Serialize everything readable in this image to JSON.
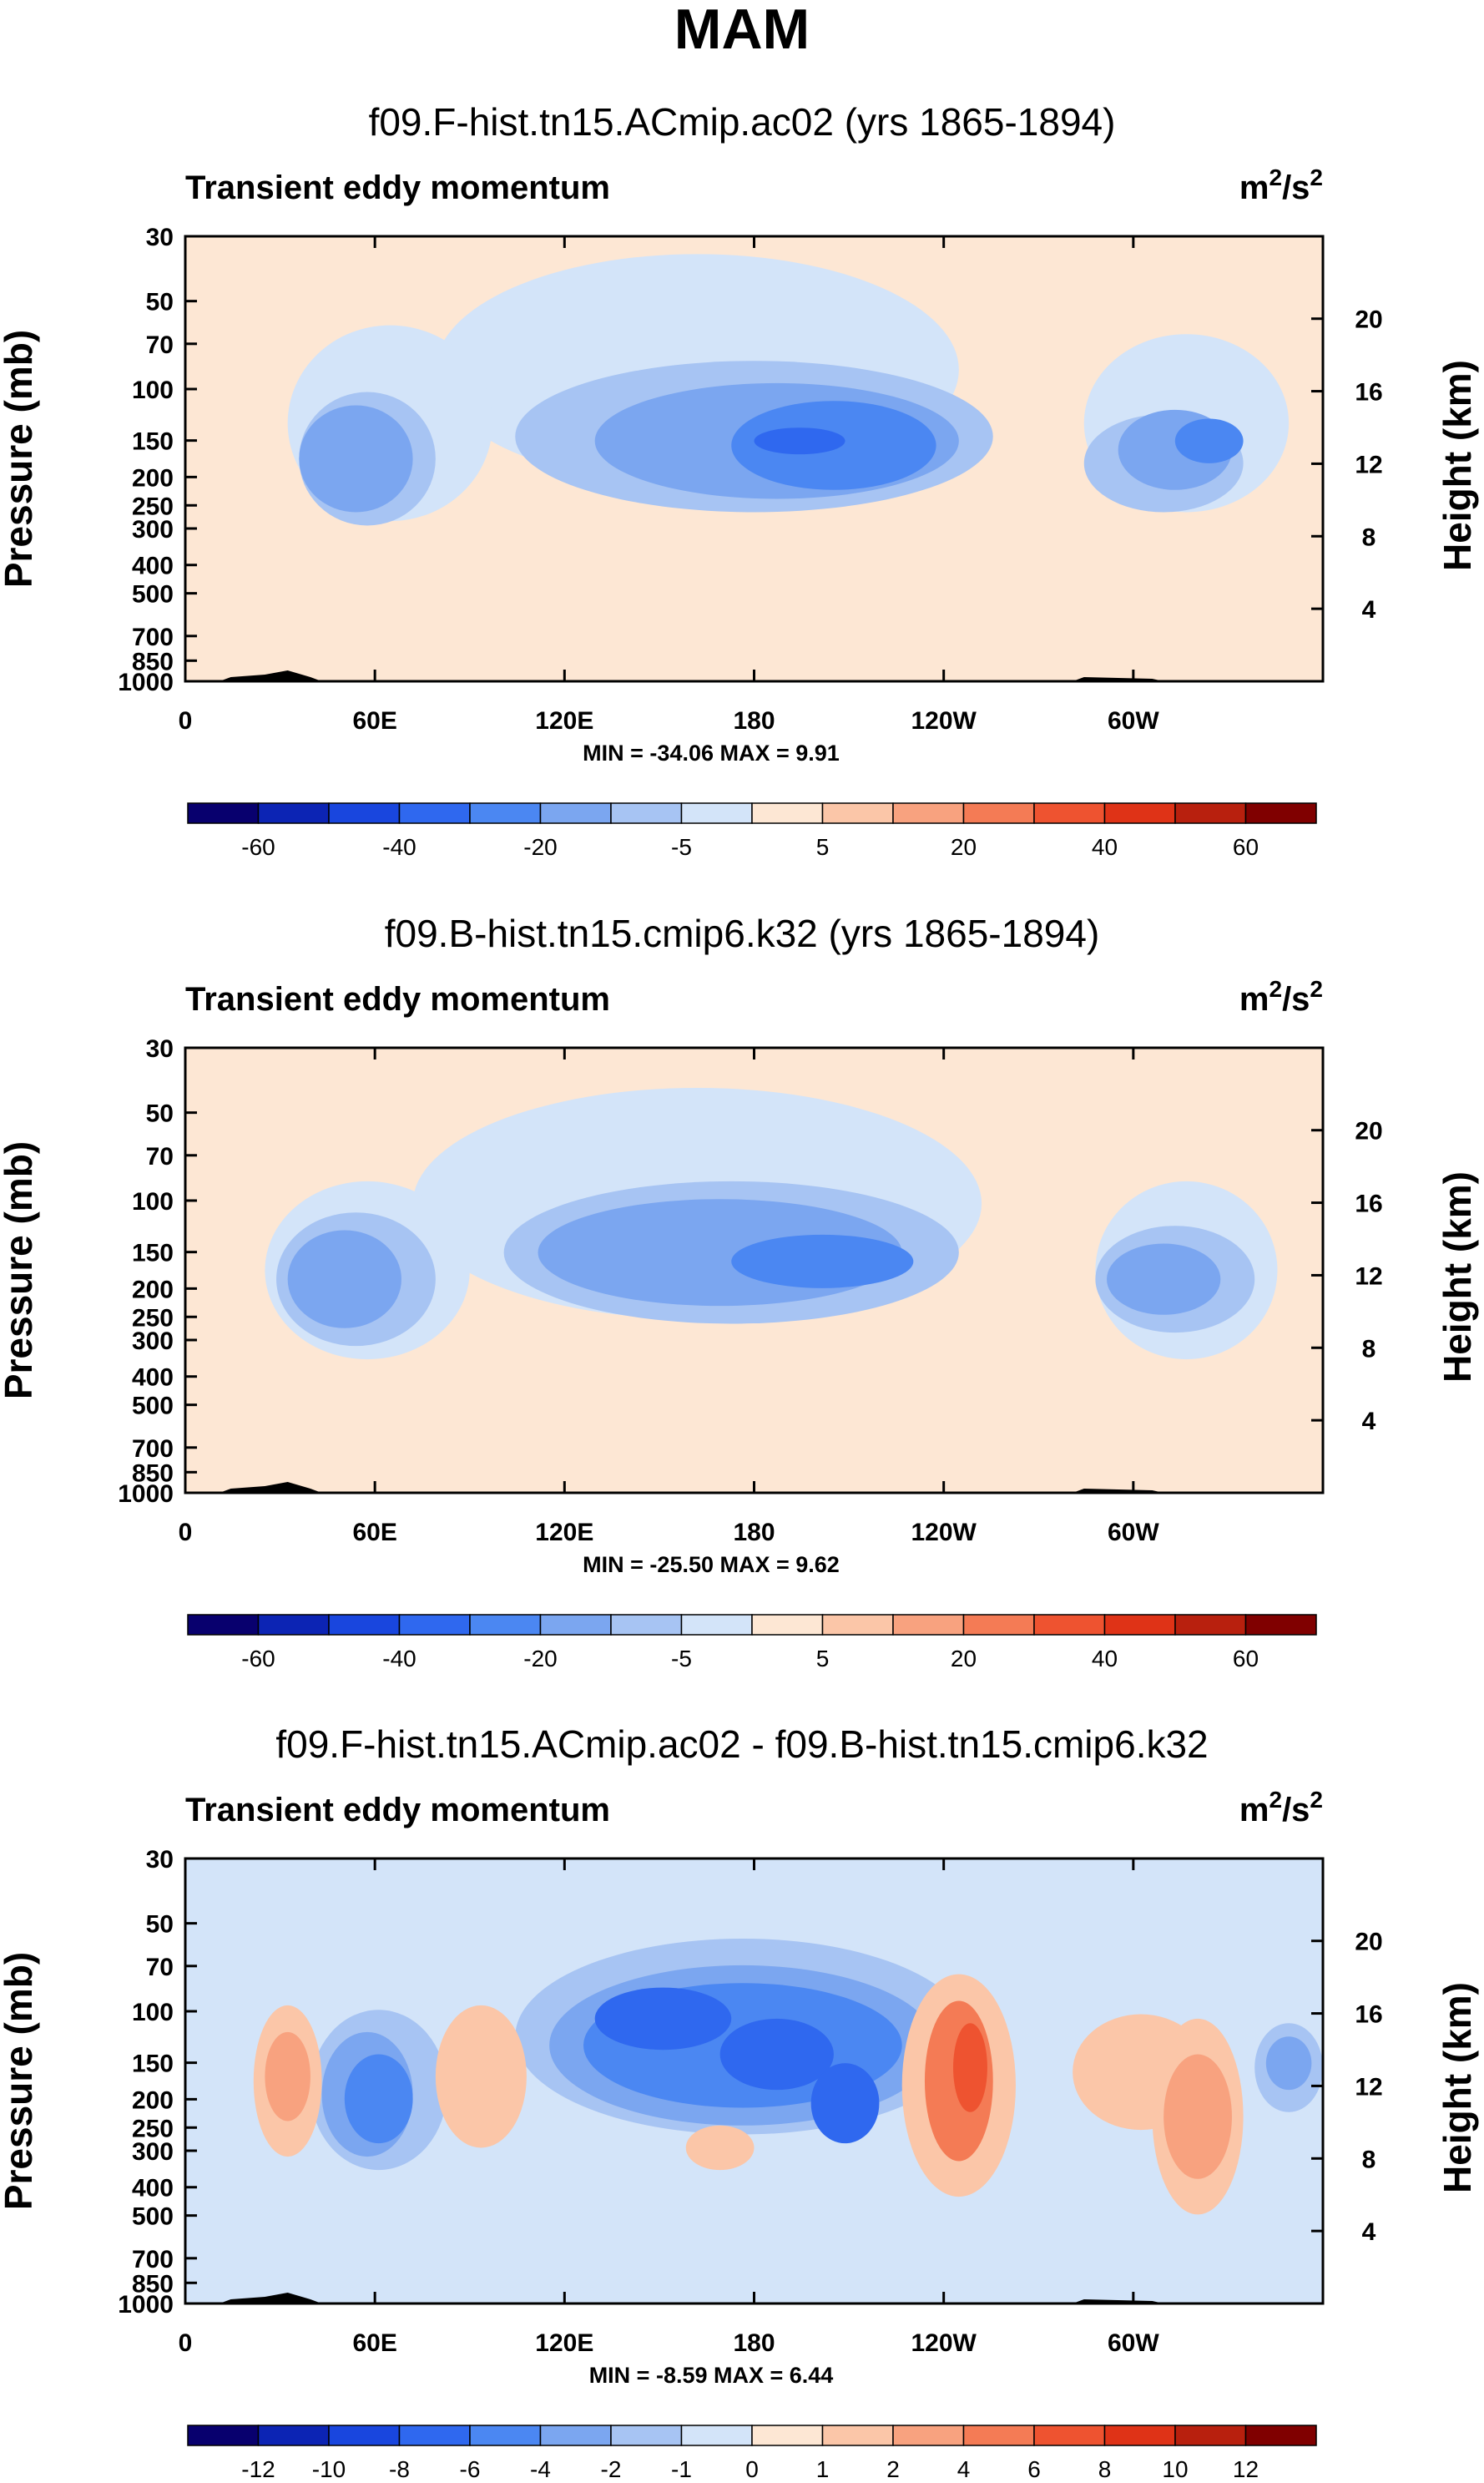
{
  "page_title": "MAM",
  "common": {
    "subtitle": "Transient eddy momentum",
    "units_base": "m",
    "units_exp_1": "2",
    "units_mid": "/s",
    "units_exp_2": "2",
    "ylabel_left": "Pressure (mb)",
    "ylabel_right": "Height (km)"
  },
  "chart_data": [
    {
      "type": "heatmap",
      "title": "f09.F-hist.tn15.ACmip.ac02 (yrs 1865-1894)",
      "subtitle": "Transient eddy momentum",
      "units": "m2/s2",
      "x_ticks": [
        "0",
        "60E",
        "120E",
        "180",
        "120W",
        "60W"
      ],
      "y_ticks_pressure": [
        "30",
        "50",
        "70",
        "100",
        "150",
        "200",
        "250",
        "300",
        "400",
        "500",
        "700",
        "850",
        "1000"
      ],
      "y_ticks_height": [
        "20",
        "16",
        "12",
        "8",
        "4"
      ],
      "xlabel": "MIN = -34.06   MAX =   9.91",
      "stats": {
        "min": -34.06,
        "max": 9.91
      },
      "colorbar_labels": [
        "-60",
        "-40",
        "-20",
        "-5",
        "5",
        "20",
        "40",
        "60"
      ],
      "colorbar_colors": [
        "#08006e",
        "#0c24b4",
        "#1946de",
        "#2f68ef",
        "#4b87f2",
        "#7ba6f0",
        "#a7c4f3",
        "#d3e4f9",
        "#fde7d4",
        "#fbc6a8",
        "#f8a27f",
        "#f47b55",
        "#ee5330",
        "#df3317",
        "#b8200e",
        "#800000"
      ]
    },
    {
      "type": "heatmap",
      "title": "f09.B-hist.tn15.cmip6.k32 (yrs 1865-1894)",
      "subtitle": "Transient eddy momentum",
      "units": "m2/s2",
      "x_ticks": [
        "0",
        "60E",
        "120E",
        "180",
        "120W",
        "60W"
      ],
      "y_ticks_pressure": [
        "30",
        "50",
        "70",
        "100",
        "150",
        "200",
        "250",
        "300",
        "400",
        "500",
        "700",
        "850",
        "1000"
      ],
      "y_ticks_height": [
        "20",
        "16",
        "12",
        "8",
        "4"
      ],
      "xlabel": "MIN = -25.50   MAX =   9.62",
      "stats": {
        "min": -25.5,
        "max": 9.62
      },
      "colorbar_labels": [
        "-60",
        "-40",
        "-20",
        "-5",
        "5",
        "20",
        "40",
        "60"
      ],
      "colorbar_colors": [
        "#08006e",
        "#0c24b4",
        "#1946de",
        "#2f68ef",
        "#4b87f2",
        "#7ba6f0",
        "#a7c4f3",
        "#d3e4f9",
        "#fde7d4",
        "#fbc6a8",
        "#f8a27f",
        "#f47b55",
        "#ee5330",
        "#df3317",
        "#b8200e",
        "#800000"
      ]
    },
    {
      "type": "heatmap",
      "title": "f09.F-hist.tn15.ACmip.ac02 - f09.B-hist.tn15.cmip6.k32",
      "subtitle": "Transient eddy momentum",
      "units": "m2/s2",
      "x_ticks": [
        "0",
        "60E",
        "120E",
        "180",
        "120W",
        "60W"
      ],
      "y_ticks_pressure": [
        "30",
        "50",
        "70",
        "100",
        "150",
        "200",
        "250",
        "300",
        "400",
        "500",
        "700",
        "850",
        "1000"
      ],
      "y_ticks_height": [
        "20",
        "16",
        "12",
        "8",
        "4"
      ],
      "xlabel": "MIN =  -8.59   MAX =   6.44",
      "stats": {
        "min": -8.59,
        "max": 6.44
      },
      "colorbar_labels": [
        "-12",
        "-10",
        "-8",
        "-6",
        "-4",
        "-2",
        "-1",
        "0",
        "1",
        "2",
        "4",
        "6",
        "8",
        "10",
        "12"
      ],
      "colorbar_colors": [
        "#08006e",
        "#0c24b4",
        "#1946de",
        "#2f68ef",
        "#4b87f2",
        "#7ba6f0",
        "#a7c4f3",
        "#d3e4f9",
        "#fde7d4",
        "#fbc6a8",
        "#f8a27f",
        "#f47b55",
        "#ee5330",
        "#df3317",
        "#b8200e",
        "#800000"
      ]
    }
  ]
}
